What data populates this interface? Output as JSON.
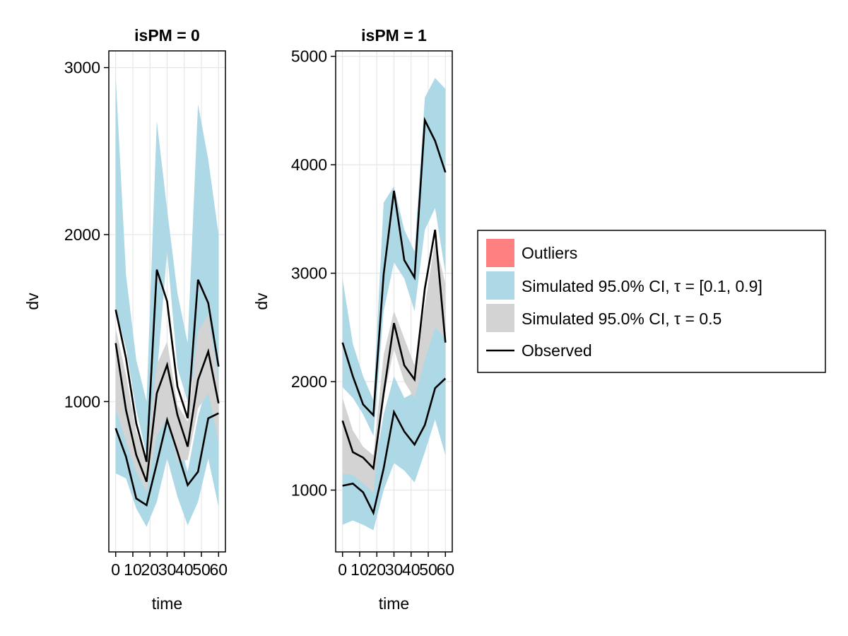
{
  "chart_data": [
    {
      "type": "area",
      "title": "isPM = 0",
      "xlabel": "time",
      "ylabel": "dv",
      "xlim": [
        -4,
        64
      ],
      "ylim": [
        100,
        3100
      ],
      "x_ticks": [
        0,
        10,
        20,
        30,
        40,
        50,
        60
      ],
      "x_tick_labels": [
        "0",
        "10",
        "20",
        "30",
        "40",
        "50",
        "60"
      ],
      "y_ticks": [
        1000,
        2000,
        3000
      ],
      "y_tick_labels": [
        "1000",
        "2000",
        "3000"
      ],
      "grid": true,
      "x": [
        0,
        6,
        12,
        18,
        24,
        30,
        36,
        42,
        48,
        54,
        60
      ],
      "bands": {
        "outer_upper": {
          "lower": [
            1550,
            1320,
            950,
            680,
            1150,
            1900,
            1200,
            1000,
            1300,
            1450,
            1050
          ],
          "upper": [
            2950,
            1760,
            1250,
            1000,
            2680,
            2150,
            1650,
            1350,
            2780,
            2450,
            2000
          ]
        },
        "median": {
          "lower": [
            960,
            760,
            580,
            460,
            800,
            900,
            640,
            650,
            960,
            1050,
            760
          ],
          "upper": [
            1440,
            1160,
            820,
            660,
            1220,
            1360,
            980,
            880,
            1420,
            1520,
            1120
          ]
        },
        "outer_lower": {
          "lower": [
            570,
            540,
            360,
            250,
            400,
            660,
            430,
            260,
            400,
            660,
            370
          ],
          "upper": [
            970,
            870,
            660,
            500,
            870,
            1070,
            800,
            580,
            910,
            1120,
            1120
          ]
        }
      },
      "series": [
        {
          "name": "Observed upper",
          "values": [
            1550,
            1260,
            870,
            640,
            1790,
            1600,
            1090,
            900,
            1730,
            1590,
            1210
          ]
        },
        {
          "name": "Observed median",
          "values": [
            1350,
            950,
            680,
            520,
            1050,
            1220,
            920,
            730,
            1130,
            1300,
            990
          ]
        },
        {
          "name": "Observed lower",
          "values": [
            840,
            670,
            420,
            380,
            630,
            890,
            700,
            500,
            580,
            900,
            930
          ]
        }
      ]
    },
    {
      "type": "area",
      "title": "isPM = 1",
      "xlabel": "time",
      "ylabel": "dv",
      "xlim": [
        -4,
        64
      ],
      "ylim": [
        430,
        5050
      ],
      "x_ticks": [
        0,
        10,
        20,
        30,
        40,
        50,
        60
      ],
      "x_tick_labels": [
        "0",
        "10",
        "20",
        "30",
        "40",
        "50",
        "60"
      ],
      "y_ticks": [
        1000,
        2000,
        3000,
        4000,
        5000
      ],
      "y_tick_labels": [
        "1000",
        "2000",
        "3000",
        "4000",
        "5000"
      ],
      "grid": true,
      "x": [
        0,
        6,
        12,
        18,
        24,
        30,
        36,
        42,
        48,
        54,
        60
      ],
      "bands": {
        "outer_upper": {
          "lower": [
            1950,
            1850,
            1700,
            1500,
            2650,
            3100,
            2950,
            2650,
            3400,
            3600,
            3000
          ],
          "upper": [
            2950,
            2350,
            2050,
            1830,
            3650,
            3800,
            3400,
            3200,
            4620,
            4800,
            4700
          ]
        },
        "median": {
          "lower": [
            1150,
            1140,
            1060,
            980,
            1850,
            2300,
            2000,
            1850,
            2200,
            2500,
            2400
          ],
          "upper": [
            1850,
            1550,
            1400,
            1320,
            2250,
            2650,
            2400,
            2150,
            2700,
            3300,
            2900
          ]
        },
        "outer_lower": {
          "lower": [
            680,
            720,
            680,
            630,
            1000,
            1250,
            1180,
            1070,
            1350,
            1650,
            1320
          ],
          "upper": [
            1150,
            1280,
            1230,
            1130,
            1700,
            2050,
            1850,
            1900,
            2350,
            2600,
            2700
          ]
        }
      },
      "series": [
        {
          "name": "Observed upper",
          "values": [
            2360,
            2050,
            1790,
            1690,
            2990,
            3760,
            3120,
            2960,
            4410,
            4220,
            3930
          ]
        },
        {
          "name": "Observed median",
          "values": [
            1640,
            1350,
            1300,
            1200,
            1890,
            2540,
            2150,
            2020,
            2860,
            3400,
            2360
          ]
        },
        {
          "name": "Observed lower",
          "values": [
            1040,
            1060,
            980,
            790,
            1200,
            1720,
            1540,
            1420,
            1600,
            1940,
            2030
          ]
        }
      ]
    }
  ],
  "legend": {
    "position": "right",
    "items": [
      {
        "label": "Outliers",
        "kind": "patch",
        "color": "#ff8080"
      },
      {
        "label": "Simulated 95.0% CI, τ = [0.1, 0.9]",
        "kind": "patch",
        "color": "#add8e6"
      },
      {
        "label": "Simulated 95.0% CI, τ = 0.5",
        "kind": "patch",
        "color": "#d3d3d3"
      },
      {
        "label": "Observed",
        "kind": "line",
        "color": "#000000"
      }
    ]
  },
  "colors": {
    "outer_band": "#add8e6",
    "median_band": "#d3d3d3",
    "observed_line": "#000000",
    "grid": "#e6e6e6"
  }
}
